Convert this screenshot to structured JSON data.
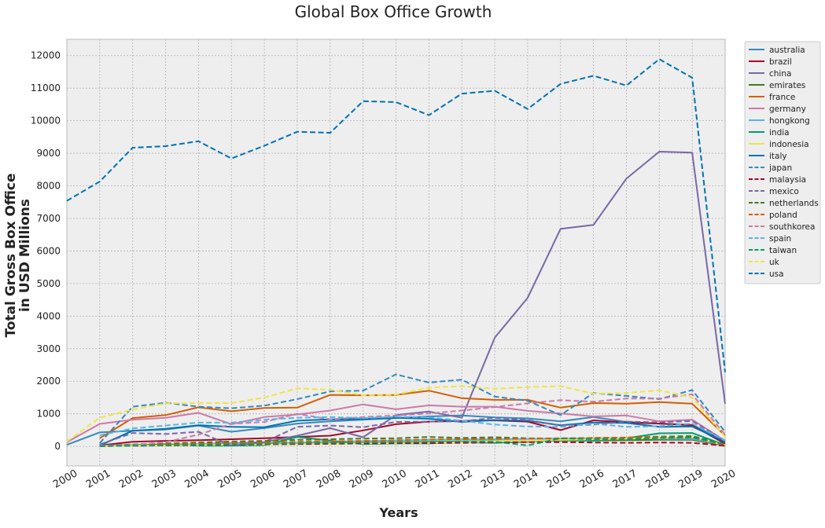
{
  "chart_data": {
    "type": "line",
    "title": "Global Box Office Growth",
    "xlabel": "Years",
    "ylabel_lines": [
      "Total Gross Box Office",
      "in USD Millions"
    ],
    "xlim": [
      2000,
      2020
    ],
    "ylim": [
      -600,
      12500
    ],
    "x_ticks": [
      2000,
      2001,
      2002,
      2003,
      2004,
      2005,
      2006,
      2007,
      2008,
      2009,
      2010,
      2011,
      2012,
      2013,
      2014,
      2015,
      2016,
      2017,
      2018,
      2019,
      2020
    ],
    "y_ticks": [
      0,
      1000,
      2000,
      3000,
      4000,
      5000,
      6000,
      7000,
      8000,
      9000,
      10000,
      11000,
      12000
    ],
    "grid": true,
    "legend_position": "outside-top-right",
    "background": "#eeeeee",
    "series": [
      {
        "name": "australia",
        "color": "#348abd",
        "dash": "solid",
        "x": [
          2000,
          2001,
          2002,
          2003,
          2004,
          2005,
          2006,
          2007,
          2008,
          2009,
          2010,
          2011,
          2012,
          2013,
          2014,
          2015,
          2016,
          2017,
          2018,
          2019,
          2020
        ],
        "values": [
          50,
          430,
          480,
          520,
          640,
          450,
          560,
          700,
          770,
          820,
          870,
          920,
          950,
          890,
          860,
          770,
          900,
          750,
          700,
          660,
          170
        ]
      },
      {
        "name": "brazil",
        "color": "#a60628",
        "dash": "solid",
        "x": [
          2001,
          2002,
          2003,
          2004,
          2005,
          2006,
          2007,
          2008,
          2009,
          2010,
          2011,
          2012,
          2013,
          2014,
          2015,
          2016,
          2017,
          2018,
          2019,
          2020
        ],
        "values": [
          30,
          140,
          170,
          190,
          220,
          250,
          290,
          330,
          490,
          680,
          760,
          780,
          800,
          760,
          500,
          800,
          740,
          700,
          650,
          80
        ]
      },
      {
        "name": "china",
        "color": "#7a68a6",
        "dash": "solid",
        "x": [
          2001,
          2002,
          2003,
          2004,
          2005,
          2006,
          2007,
          2008,
          2009,
          2010,
          2011,
          2012,
          2013,
          2014,
          2015,
          2016,
          2017,
          2018,
          2019,
          2020
        ],
        "values": [
          20,
          30,
          50,
          70,
          100,
          130,
          330,
          560,
          280,
          960,
          1070,
          880,
          3340,
          4560,
          6680,
          6800,
          8220,
          9050,
          9020,
          1310
        ]
      },
      {
        "name": "emirates",
        "color": "#467821",
        "dash": "solid",
        "x": [
          2001,
          2002,
          2003,
          2004,
          2005,
          2006,
          2007,
          2008,
          2009,
          2010,
          2011,
          2012,
          2013,
          2014,
          2015,
          2016,
          2017,
          2018,
          2019,
          2020
        ],
        "values": [
          10,
          20,
          30,
          40,
          50,
          60,
          80,
          100,
          110,
          120,
          140,
          150,
          160,
          170,
          180,
          180,
          190,
          200,
          200,
          20
        ]
      },
      {
        "name": "france",
        "color": "#d55e00",
        "dash": "solid",
        "x": [
          2001,
          2002,
          2003,
          2004,
          2005,
          2006,
          2007,
          2008,
          2009,
          2010,
          2011,
          2012,
          2013,
          2014,
          2015,
          2016,
          2017,
          2018,
          2019,
          2020
        ],
        "values": [
          250,
          870,
          960,
          1200,
          1080,
          1180,
          1190,
          1580,
          1570,
          1580,
          1710,
          1480,
          1430,
          1430,
          1190,
          1330,
          1310,
          1360,
          1310,
          330
        ]
      },
      {
        "name": "germany",
        "color": "#cc79a7",
        "dash": "solid",
        "x": [
          2000,
          2001,
          2002,
          2003,
          2004,
          2005,
          2006,
          2007,
          2008,
          2009,
          2010,
          2011,
          2012,
          2013,
          2014,
          2015,
          2016,
          2017,
          2018,
          2019,
          2020
        ],
        "values": [
          130,
          690,
          820,
          880,
          1030,
          680,
          900,
          980,
          1100,
          1290,
          1140,
          1260,
          1220,
          1220,
          1090,
          1010,
          920,
          950,
          770,
          820,
          170
        ]
      },
      {
        "name": "hongkong",
        "color": "#56b4e9",
        "dash": "solid",
        "x": [
          2001,
          2002,
          2003,
          2004,
          2005,
          2006,
          2007,
          2008,
          2009,
          2010,
          2011,
          2012,
          2013,
          2014,
          2015,
          2016,
          2017,
          2018,
          2019,
          2020
        ],
        "values": [
          20,
          40,
          60,
          70,
          80,
          100,
          120,
          140,
          160,
          180,
          200,
          210,
          220,
          230,
          240,
          250,
          250,
          240,
          230,
          50
        ]
      },
      {
        "name": "india",
        "color": "#009e73",
        "dash": "solid",
        "x": [
          2001,
          2002,
          2003,
          2004,
          2005,
          2006,
          2007,
          2008,
          2009,
          2010,
          2011,
          2012,
          2013,
          2014,
          2015,
          2016,
          2017,
          2018,
          2019,
          2020
        ],
        "values": [
          10,
          40,
          70,
          20,
          20,
          40,
          290,
          180,
          70,
          90,
          90,
          130,
          110,
          140,
          200,
          180,
          250,
          400,
          410,
          40
        ]
      },
      {
        "name": "indonesia",
        "color": "#f0e442",
        "dash": "solid",
        "x": [
          2001,
          2002,
          2003,
          2004,
          2005,
          2006,
          2007,
          2008,
          2009,
          2010,
          2011,
          2012,
          2013,
          2014,
          2015,
          2016,
          2017,
          2018,
          2019,
          2020
        ],
        "values": [
          10,
          20,
          30,
          40,
          50,
          60,
          70,
          80,
          90,
          100,
          110,
          130,
          150,
          170,
          200,
          220,
          240,
          260,
          280,
          40
        ]
      },
      {
        "name": "italy",
        "color": "#0072b2",
        "dash": "solid",
        "x": [
          2001,
          2002,
          2003,
          2004,
          2005,
          2006,
          2007,
          2008,
          2009,
          2010,
          2011,
          2012,
          2013,
          2014,
          2015,
          2016,
          2017,
          2018,
          2019,
          2020
        ],
        "values": [
          30,
          480,
          540,
          650,
          600,
          590,
          790,
          830,
          840,
          880,
          850,
          750,
          810,
          790,
          650,
          730,
          720,
          600,
          610,
          140
        ]
      },
      {
        "name": "japan",
        "color": "#348abd",
        "dash": "dashed",
        "x": [
          2001,
          2002,
          2003,
          2004,
          2005,
          2006,
          2007,
          2008,
          2009,
          2010,
          2011,
          2012,
          2013,
          2014,
          2015,
          2016,
          2017,
          2018,
          2019,
          2020
        ],
        "values": [
          100,
          1220,
          1340,
          1220,
          1170,
          1250,
          1450,
          1690,
          1710,
          2210,
          1960,
          2050,
          1530,
          1400,
          960,
          1640,
          1550,
          1450,
          1730,
          450
        ]
      },
      {
        "name": "malaysia",
        "color": "#a60628",
        "dash": "dashed",
        "x": [
          2001,
          2002,
          2003,
          2004,
          2005,
          2006,
          2007,
          2008,
          2009,
          2010,
          2011,
          2012,
          2013,
          2014,
          2015,
          2016,
          2017,
          2018,
          2019,
          2020
        ],
        "values": [
          10,
          20,
          30,
          40,
          50,
          60,
          70,
          80,
          90,
          100,
          100,
          110,
          120,
          130,
          130,
          120,
          110,
          120,
          110,
          20
        ]
      },
      {
        "name": "mexico",
        "color": "#7a68a6",
        "dash": "dashed",
        "x": [
          2001,
          2002,
          2003,
          2004,
          2005,
          2006,
          2007,
          2008,
          2009,
          2010,
          2011,
          2012,
          2013,
          2014,
          2015,
          2016,
          2017,
          2018,
          2019,
          2020
        ],
        "values": [
          60,
          410,
          380,
          450,
          20,
          130,
          600,
          640,
          590,
          750,
          760,
          770,
          880,
          810,
          640,
          670,
          760,
          740,
          780,
          180
        ]
      },
      {
        "name": "netherlands",
        "color": "#467821",
        "dash": "dashed",
        "x": [
          2001,
          2002,
          2003,
          2004,
          2005,
          2006,
          2007,
          2008,
          2009,
          2010,
          2011,
          2012,
          2013,
          2014,
          2015,
          2016,
          2017,
          2018,
          2019,
          2020
        ],
        "values": [
          20,
          60,
          90,
          120,
          150,
          170,
          200,
          220,
          240,
          250,
          290,
          260,
          280,
          250,
          240,
          260,
          270,
          300,
          320,
          60
        ]
      },
      {
        "name": "poland",
        "color": "#d55e00",
        "dash": "dashed",
        "x": [
          2001,
          2002,
          2003,
          2004,
          2005,
          2006,
          2007,
          2008,
          2009,
          2010,
          2011,
          2012,
          2013,
          2014,
          2015,
          2016,
          2017,
          2018,
          2019,
          2020
        ],
        "values": [
          10,
          40,
          60,
          80,
          100,
          120,
          140,
          160,
          170,
          190,
          210,
          220,
          230,
          240,
          250,
          260,
          270,
          280,
          270,
          50
        ]
      },
      {
        "name": "southkorea",
        "color": "#cc79a7",
        "dash": "dashed",
        "x": [
          2001,
          2002,
          2003,
          2004,
          2005,
          2006,
          2007,
          2008,
          2009,
          2010,
          2011,
          2012,
          2013,
          2014,
          2015,
          2016,
          2017,
          2018,
          2019,
          2020
        ],
        "values": [
          30,
          40,
          130,
          360,
          690,
          750,
          1000,
          830,
          900,
          950,
          1010,
          1100,
          1210,
          1320,
          1420,
          1370,
          1470,
          1470,
          1600,
          350
        ]
      },
      {
        "name": "spain",
        "color": "#56b4e9",
        "dash": "dashed",
        "x": [
          2001,
          2002,
          2003,
          2004,
          2005,
          2006,
          2007,
          2008,
          2009,
          2010,
          2011,
          2012,
          2013,
          2014,
          2015,
          2016,
          2017,
          2018,
          2019,
          2020
        ],
        "values": [
          340,
          550,
          640,
          730,
          730,
          820,
          880,
          900,
          870,
          910,
          890,
          790,
          670,
          610,
          600,
          700,
          600,
          620,
          700,
          180
        ]
      },
      {
        "name": "taiwan",
        "color": "#009e73",
        "dash": "dashed",
        "x": [
          2001,
          2002,
          2003,
          2004,
          2005,
          2006,
          2007,
          2008,
          2009,
          2010,
          2011,
          2012,
          2013,
          2014,
          2015,
          2016,
          2017,
          2018,
          2019,
          2020
        ],
        "values": [
          10,
          20,
          30,
          50,
          60,
          70,
          90,
          110,
          120,
          130,
          140,
          150,
          140,
          30,
          250,
          220,
          220,
          260,
          270,
          70
        ]
      },
      {
        "name": "uk",
        "color": "#f0e442",
        "dash": "dashed",
        "x": [
          2000,
          2001,
          2002,
          2003,
          2004,
          2005,
          2006,
          2007,
          2008,
          2009,
          2010,
          2011,
          2012,
          2013,
          2014,
          2015,
          2016,
          2017,
          2018,
          2019,
          2020
        ],
        "values": [
          150,
          880,
          1130,
          1320,
          1330,
          1330,
          1500,
          1780,
          1740,
          1570,
          1590,
          1800,
          1850,
          1770,
          1820,
          1850,
          1620,
          1640,
          1720,
          1500,
          290
        ]
      },
      {
        "name": "usa",
        "color": "#0072b2",
        "dash": "dashed",
        "x": [
          2000,
          2001,
          2002,
          2003,
          2004,
          2005,
          2006,
          2007,
          2008,
          2009,
          2010,
          2011,
          2012,
          2013,
          2014,
          2015,
          2016,
          2017,
          2018,
          2019,
          2020
        ],
        "values": [
          7540,
          8130,
          9170,
          9220,
          9370,
          8840,
          9230,
          9660,
          9630,
          10600,
          10570,
          10170,
          10830,
          10920,
          10360,
          11130,
          11380,
          11080,
          11890,
          11320,
          2280
        ]
      }
    ]
  }
}
